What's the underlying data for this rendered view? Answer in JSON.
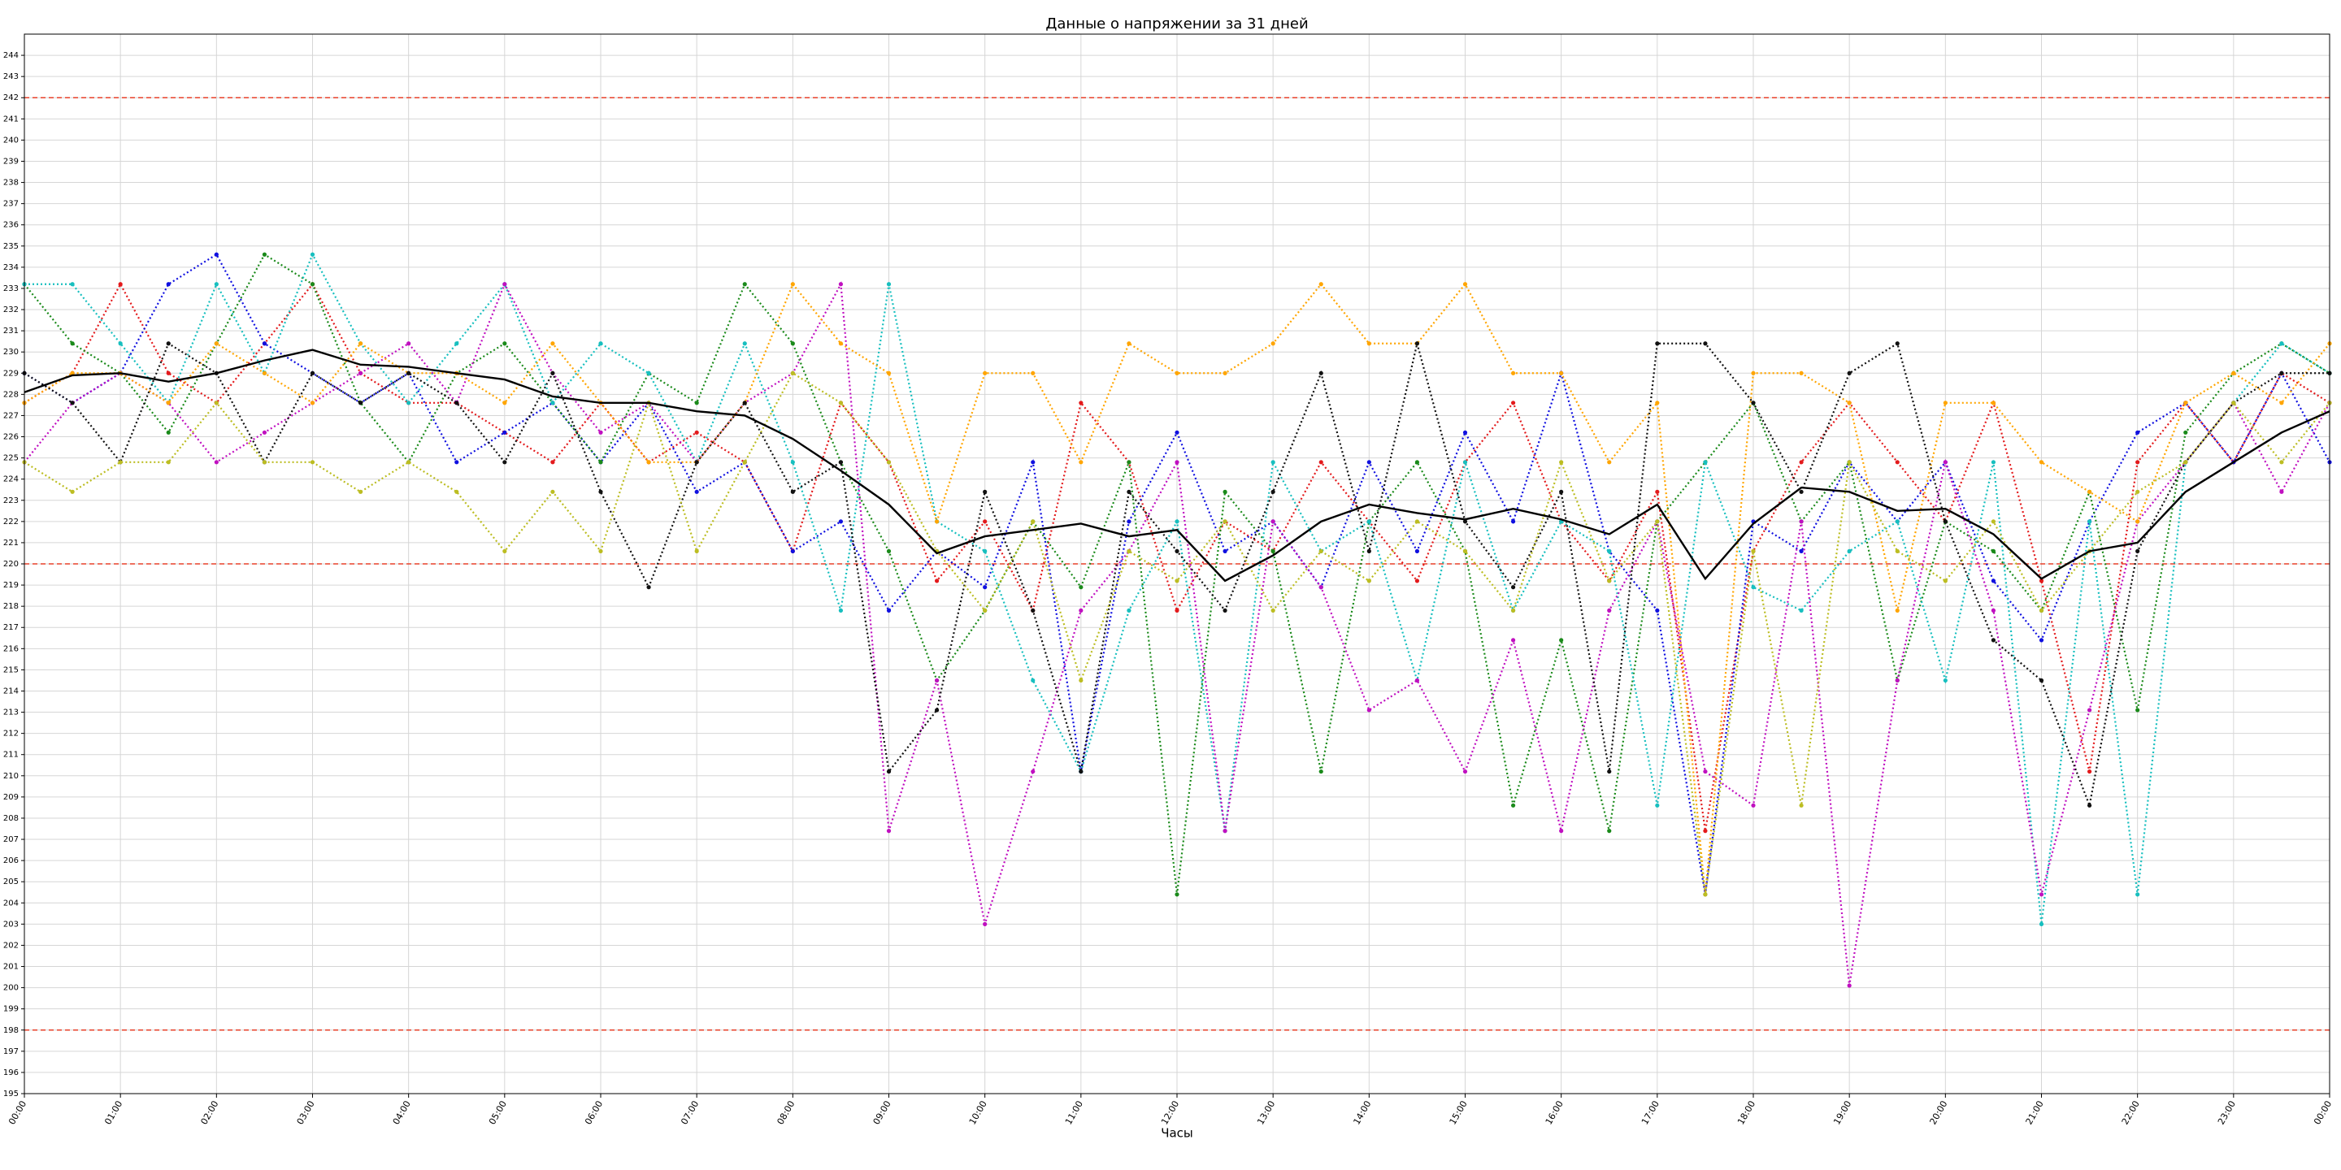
{
  "chart_data": {
    "type": "line",
    "title": "Данные о напряжении за 31 дней",
    "xlabel": "Часы",
    "grid": true,
    "x": [
      0,
      0.5,
      1,
      1.5,
      2,
      2.5,
      3,
      3.5,
      4,
      4.5,
      5,
      5.5,
      6,
      6.5,
      7,
      7.5,
      8,
      8.5,
      9,
      9.5,
      10,
      10.5,
      11,
      11.5,
      12,
      12.5,
      13,
      13.5,
      14,
      14.5,
      15,
      15.5,
      16,
      16.5,
      17,
      17.5,
      18,
      18.5,
      19,
      19.5,
      20,
      20.5,
      21,
      21.5,
      22,
      22.5,
      23,
      23.5,
      24
    ],
    "xlim": [
      0,
      24
    ],
    "xticks": [
      {
        "value": 0,
        "label": "00:00"
      },
      {
        "value": 1,
        "label": "01:00"
      },
      {
        "value": 2,
        "label": "02:00"
      },
      {
        "value": 3,
        "label": "03:00"
      },
      {
        "value": 4,
        "label": "04:00"
      },
      {
        "value": 5,
        "label": "05:00"
      },
      {
        "value": 6,
        "label": "06:00"
      },
      {
        "value": 7,
        "label": "07:00"
      },
      {
        "value": 8,
        "label": "08:00"
      },
      {
        "value": 9,
        "label": "09:00"
      },
      {
        "value": 10,
        "label": "10:00"
      },
      {
        "value": 11,
        "label": "11:00"
      },
      {
        "value": 12,
        "label": "12:00"
      },
      {
        "value": 13,
        "label": "13:00"
      },
      {
        "value": 14,
        "label": "14:00"
      },
      {
        "value": 15,
        "label": "15:00"
      },
      {
        "value": 16,
        "label": "16:00"
      },
      {
        "value": 17,
        "label": "17:00"
      },
      {
        "value": 18,
        "label": "18:00"
      },
      {
        "value": 19,
        "label": "19:00"
      },
      {
        "value": 20,
        "label": "20:00"
      },
      {
        "value": 21,
        "label": "21:00"
      },
      {
        "value": 22,
        "label": "22:00"
      },
      {
        "value": 23,
        "label": "23:00"
      },
      {
        "value": 24,
        "label": "00:00"
      }
    ],
    "ylim": [
      195,
      245
    ],
    "yticks": [
      195,
      196,
      197,
      198,
      199,
      200,
      201,
      202,
      203,
      204,
      205,
      206,
      207,
      208,
      209,
      210,
      211,
      212,
      213,
      214,
      215,
      216,
      217,
      218,
      219,
      220,
      221,
      222,
      223,
      224,
      225,
      226,
      227,
      228,
      229,
      230,
      231,
      232,
      233,
      234,
      235,
      236,
      237,
      238,
      239,
      240,
      241,
      242,
      243,
      244
    ],
    "hlines": [
      {
        "value": 242,
        "color": "#e8402a"
      },
      {
        "value": 220,
        "color": "#e8402a"
      },
      {
        "value": 198,
        "color": "#e8402a"
      }
    ],
    "series": [
      {
        "color": "#e31a1c",
        "linestyle": "dotted",
        "values": [
          227.6,
          229,
          233.2,
          229,
          227.6,
          230.4,
          233.2,
          229,
          227.6,
          227.6,
          226.2,
          224.8,
          227.6,
          224.8,
          226.2,
          224.8,
          220.6,
          227.6,
          224.8,
          219.2,
          222,
          217.8,
          227.6,
          224.8,
          217.8,
          222,
          220.6,
          224.8,
          222,
          219.2,
          224.8,
          227.6,
          222,
          219.2,
          223.4,
          207.4,
          220.6,
          224.8,
          227.6,
          224.8,
          222,
          227.6,
          219.2,
          210.2,
          224.8,
          227.6,
          224.8,
          229,
          227.6
        ]
      },
      {
        "color": "#1010e0",
        "linestyle": "dotted",
        "values": [
          229,
          227.6,
          229,
          233.2,
          234.6,
          230.4,
          229,
          227.6,
          229,
          224.8,
          226.2,
          227.6,
          224.8,
          227.6,
          223.4,
          224.8,
          220.6,
          222,
          217.8,
          220.6,
          218.9,
          224.8,
          210.2,
          222,
          226.2,
          220.6,
          222,
          218.9,
          224.8,
          220.6,
          226.2,
          222,
          229,
          220.6,
          217.8,
          204.4,
          222,
          220.6,
          224.8,
          222,
          224.8,
          219.2,
          216.4,
          222,
          226.2,
          227.6,
          224.8,
          229,
          224.8
        ]
      },
      {
        "color": "#1a8a1a",
        "linestyle": "dotted",
        "values": [
          233.2,
          230.4,
          229,
          226.2,
          230.4,
          234.6,
          233.2,
          227.6,
          224.8,
          229,
          230.4,
          227.6,
          224.8,
          229,
          227.6,
          233.2,
          230.4,
          224.8,
          220.6,
          214.5,
          217.8,
          222,
          218.9,
          224.8,
          204.4,
          223.4,
          220.6,
          210.2,
          222,
          224.8,
          220.6,
          208.6,
          216.4,
          207.4,
          222,
          224.8,
          227.6,
          222,
          224.8,
          214.5,
          222,
          220.6,
          217.8,
          223.4,
          213.1,
          226.2,
          229,
          230.4,
          229
        ]
      },
      {
        "color": "#17bfbf",
        "linestyle": "dotted",
        "values": [
          233.2,
          233.2,
          230.4,
          227.6,
          233.2,
          229,
          234.6,
          230.4,
          227.6,
          230.4,
          233.2,
          227.6,
          230.4,
          229,
          224.8,
          230.4,
          224.8,
          217.8,
          233.2,
          222,
          220.6,
          214.5,
          210.2,
          217.8,
          222,
          207.4,
          224.8,
          220.6,
          222,
          214.5,
          224.8,
          217.8,
          222,
          220.6,
          208.6,
          224.8,
          218.9,
          217.8,
          220.6,
          222,
          214.5,
          224.8,
          203,
          222,
          204.4,
          224.8,
          227.6,
          230.4,
          229
        ]
      },
      {
        "color": "#c010c0",
        "linestyle": "dotted",
        "values": [
          224.8,
          227.6,
          229,
          227.6,
          224.8,
          226.2,
          227.6,
          229,
          230.4,
          227.6,
          233.2,
          229,
          226.2,
          227.6,
          224.8,
          227.6,
          229,
          233.2,
          207.4,
          214.5,
          203,
          210.2,
          217.8,
          220.6,
          224.8,
          207.4,
          222,
          218.9,
          213.1,
          214.5,
          210.2,
          216.4,
          207.4,
          217.8,
          222,
          210.2,
          208.6,
          222,
          200.1,
          214.5,
          224.8,
          217.8,
          204.4,
          213.1,
          222,
          224.8,
          227.6,
          223.4,
          227.6
        ]
      },
      {
        "color": "#ffa500",
        "linestyle": "dotted",
        "values": [
          227.6,
          229,
          229,
          227.6,
          230.4,
          229,
          227.6,
          230.4,
          229,
          229,
          227.6,
          230.4,
          227.6,
          224.8,
          224.8,
          227.6,
          233.2,
          230.4,
          229,
          222,
          229,
          229,
          224.8,
          230.4,
          229,
          229,
          230.4,
          233.2,
          230.4,
          230.4,
          233.2,
          229,
          229,
          224.8,
          227.6,
          204.4,
          229,
          229,
          227.6,
          217.8,
          227.6,
          227.6,
          224.8,
          223.4,
          222,
          227.6,
          229,
          227.6,
          230.4
        ]
      },
      {
        "color": "#111111",
        "linestyle": "dotted",
        "values": [
          229,
          227.6,
          224.8,
          230.4,
          229,
          224.8,
          229,
          227.6,
          229,
          227.6,
          224.8,
          229,
          223.4,
          218.9,
          224.8,
          227.6,
          223.4,
          224.8,
          210.2,
          213.1,
          223.4,
          217.8,
          210.2,
          223.4,
          220.6,
          217.8,
          223.4,
          229,
          220.6,
          230.4,
          222,
          218.9,
          223.4,
          210.2,
          230.4,
          230.4,
          227.6,
          223.4,
          229,
          230.4,
          222,
          216.4,
          214.5,
          208.6,
          220.6,
          224.8,
          227.6,
          229,
          229
        ]
      },
      {
        "color": "#bcbd22",
        "linestyle": "dotted",
        "values": [
          224.8,
          223.4,
          224.8,
          224.8,
          227.6,
          224.8,
          224.8,
          223.4,
          224.8,
          223.4,
          220.6,
          223.4,
          220.6,
          227.6,
          220.6,
          224.8,
          229,
          227.6,
          224.8,
          220.6,
          217.8,
          222,
          214.5,
          220.6,
          219.2,
          222,
          217.8,
          220.6,
          219.2,
          222,
          220.6,
          217.8,
          224.8,
          219.2,
          222,
          204.4,
          220.6,
          208.6,
          224.8,
          220.6,
          219.2,
          222,
          217.8,
          220.6,
          223.4,
          224.8,
          227.6,
          224.8,
          227.6
        ]
      },
      {
        "color": "#000000",
        "linestyle": "solid",
        "values": [
          228.1,
          228.9,
          229,
          228.6,
          229,
          229.6,
          230.1,
          229.4,
          229.3,
          229,
          228.7,
          227.9,
          227.6,
          227.6,
          227.2,
          227,
          225.9,
          224.4,
          222.8,
          220.5,
          221.3,
          221.6,
          221.9,
          221.3,
          221.6,
          219.2,
          220.4,
          222,
          222.8,
          222.4,
          222.1,
          222.6,
          222.1,
          221.4,
          222.8,
          219.3,
          221.9,
          223.6,
          223.4,
          222.5,
          222.6,
          221.4,
          219.3,
          220.6,
          221,
          223.4,
          224.8,
          226.2,
          227.2
        ]
      }
    ]
  }
}
